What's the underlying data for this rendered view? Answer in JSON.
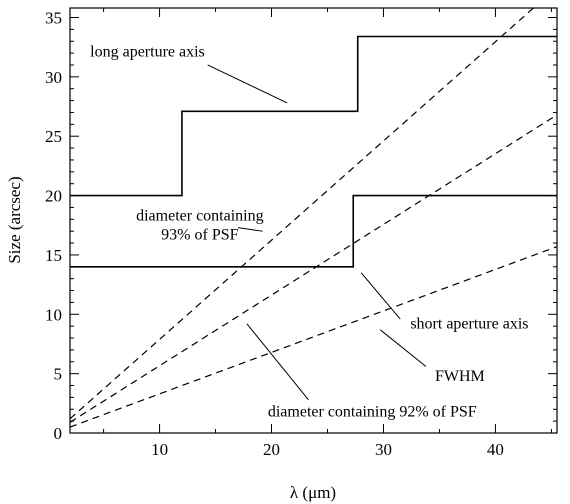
{
  "chart_data": {
    "type": "line",
    "xlabel": "λ (μm)",
    "ylabel": "Size (arcsec)",
    "xlim": [
      2,
      45.5
    ],
    "ylim": [
      0,
      35.8
    ],
    "xticks": [
      10,
      20,
      30,
      40
    ],
    "yticks": [
      0,
      5,
      10,
      15,
      20,
      25,
      30,
      35
    ],
    "grid": false,
    "series": [
      {
        "name": "long aperture axis",
        "style": "solid",
        "x": [
          2,
          12,
          12,
          27.7,
          27.7,
          45.5
        ],
        "y": [
          20,
          20,
          27.1,
          27.1,
          33.4,
          33.4
        ]
      },
      {
        "name": "short aperture axis",
        "style": "solid",
        "x": [
          2,
          27.3,
          27.3,
          45.5
        ],
        "y": [
          14,
          14,
          20,
          20
        ]
      },
      {
        "name": "diameter containing 93% of PSF",
        "style": "dashed",
        "x": [
          2,
          43.4
        ],
        "y": [
          1.2,
          35.8
        ]
      },
      {
        "name": "diameter containing 92% of PSF",
        "style": "dashed",
        "x": [
          2,
          45.5
        ],
        "y": [
          0.9,
          26.8
        ]
      },
      {
        "name": "FWHM",
        "style": "dashed",
        "x": [
          2,
          45.5
        ],
        "y": [
          0.5,
          15.7
        ]
      }
    ],
    "annotations": [
      {
        "id": "long",
        "lines": [
          "long aperture axis"
        ],
        "x": 3.8,
        "y": 31.7,
        "anchor": "start",
        "leader": [
          [
            14.3,
            31.0
          ],
          [
            21.4,
            27.8
          ]
        ]
      },
      {
        "id": "d93",
        "lines": [
          "diameter containing",
          "93% of PSF"
        ],
        "x": 13.6,
        "y": 17.9,
        "anchor": "middle",
        "leader": [
          [
            17.0,
            17.3
          ],
          [
            19.2,
            17.0
          ]
        ]
      },
      {
        "id": "short",
        "lines": [
          "short aperture axis"
        ],
        "x": 32.4,
        "y": 8.8,
        "anchor": "start",
        "leader": [
          [
            31.5,
            9.6
          ],
          [
            28.0,
            13.5
          ]
        ]
      },
      {
        "id": "fwhm",
        "lines": [
          "FWHM"
        ],
        "x": 34.6,
        "y": 4.4,
        "anchor": "start",
        "leader": [
          [
            33.8,
            5.6
          ],
          [
            29.7,
            8.7
          ]
        ]
      },
      {
        "id": "d92",
        "lines": [
          "diameter containing 92% of PSF"
        ],
        "x": 29.0,
        "y": 1.4,
        "anchor": "middle",
        "leader": [
          [
            23.3,
            2.8
          ],
          [
            17.8,
            9.2
          ]
        ]
      }
    ]
  }
}
